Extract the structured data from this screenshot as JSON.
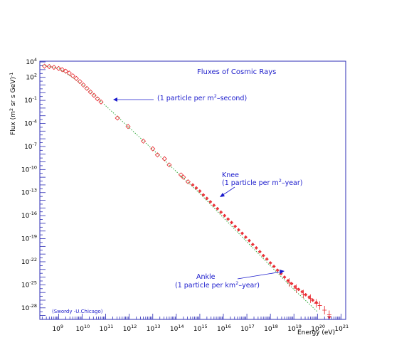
{
  "chart_data": {
    "type": "scatter",
    "title": "Fluxes of Cosmic Rays",
    "xlabel": "Energy (eV)",
    "ylabel_base": "Flux (m",
    "ylabel_parts": [
      "Flux (m",
      "2",
      " sr s GeV)",
      "-1"
    ],
    "x_scale": "log",
    "y_scale": "log",
    "xlim_exp": [
      8.2,
      21.2
    ],
    "ylim_exp": [
      -29.5,
      4.1
    ],
    "x_tick_exponents": [
      9,
      10,
      11,
      12,
      13,
      14,
      15,
      16,
      17,
      18,
      19,
      20,
      21
    ],
    "y_tick_exponents": [
      4,
      2,
      -1,
      -4,
      -7,
      -10,
      -13,
      -16,
      -19,
      -22,
      -25,
      -28
    ],
    "tick_base": "10",
    "grid": false,
    "colors": {
      "data": "#e8232a",
      "fit": "#2faa3a",
      "annotation": "#1a1acc",
      "frame": "#2b2bb5"
    },
    "credit": "(Swordy -U.Chicago)",
    "annotations": [
      {
        "text": "(1 particle per m²–second)",
        "lines": [
          "(1 particle per m",
          "2",
          "–second)"
        ],
        "x_exp": 11.3,
        "y_exp": -0.7
      },
      {
        "text": "Knee",
        "lines": [
          "Knee"
        ],
        "x_exp": 15.8,
        "y_exp": -12.8
      },
      {
        "text": "(1 particle per m²–year)",
        "lines": [
          "(1 particle per m",
          "2",
          "–year)"
        ],
        "x_exp": 15.8,
        "y_exp": -12.8
      },
      {
        "text": "Ankle",
        "lines": [
          "Ankle"
        ],
        "x_exp": 18.6,
        "y_exp": -24.7
      },
      {
        "text": "(1 particle per km²–year)",
        "lines": [
          "(1 particle per km",
          "2",
          "–year)"
        ],
        "x_exp": 18.6,
        "y_exp": -24.7
      }
    ],
    "fit_line": {
      "name": "",
      "points": [
        [
          8.3,
          3.55
        ],
        [
          9.0,
          3.2
        ],
        [
          10.0,
          1.1
        ],
        [
          11.0,
          -1.7
        ],
        [
          12.0,
          -4.55
        ],
        [
          13.0,
          -7.4
        ],
        [
          14.0,
          -10.25
        ],
        [
          15.0,
          -13.1
        ],
        [
          16.0,
          -16.25
        ],
        [
          17.0,
          -19.4
        ],
        [
          18.0,
          -22.55
        ],
        [
          19.0,
          -25.6
        ],
        [
          20.0,
          -28.5
        ]
      ]
    },
    "series": [
      {
        "name": "",
        "marker": "diamond-open",
        "points": [
          [
            8.4,
            3.45
          ],
          [
            8.6,
            3.4
          ],
          [
            8.8,
            3.3
          ],
          [
            9.0,
            3.15
          ],
          [
            9.15,
            3.0
          ],
          [
            9.3,
            2.8
          ],
          [
            9.45,
            2.55
          ],
          [
            9.6,
            2.2
          ],
          [
            9.75,
            1.85
          ],
          [
            9.9,
            1.45
          ],
          [
            10.05,
            1.0
          ],
          [
            10.2,
            0.55
          ],
          [
            10.35,
            0.1
          ],
          [
            10.5,
            -0.35
          ],
          [
            10.65,
            -0.8
          ],
          [
            10.8,
            -1.2
          ],
          [
            11.5,
            -3.3
          ],
          [
            11.95,
            -4.4
          ],
          [
            12.6,
            -6.3
          ],
          [
            13.0,
            -7.3
          ],
          [
            13.2,
            -8.1
          ],
          [
            13.5,
            -8.6
          ],
          [
            13.7,
            -9.4
          ],
          [
            14.2,
            -10.7
          ],
          [
            14.3,
            -11.0
          ],
          [
            14.5,
            -11.6
          ]
        ]
      },
      {
        "name": "",
        "marker": "cross-small",
        "points": [
          [
            14.7,
            -12.0
          ],
          [
            14.85,
            -12.4
          ],
          [
            15.0,
            -12.8
          ],
          [
            15.15,
            -13.3
          ],
          [
            15.3,
            -13.75
          ],
          [
            15.45,
            -14.2
          ],
          [
            15.6,
            -14.65
          ],
          [
            15.75,
            -15.1
          ],
          [
            15.9,
            -15.55
          ],
          [
            16.05,
            -16.0
          ],
          [
            16.2,
            -16.45
          ],
          [
            16.35,
            -16.9
          ],
          [
            16.5,
            -17.4
          ],
          [
            16.65,
            -17.85
          ],
          [
            16.8,
            -18.3
          ],
          [
            16.95,
            -18.8
          ],
          [
            17.1,
            -19.25
          ],
          [
            17.25,
            -19.75
          ],
          [
            17.4,
            -20.2
          ],
          [
            17.55,
            -20.7
          ],
          [
            17.7,
            -21.2
          ],
          [
            17.85,
            -21.65
          ],
          [
            18.0,
            -22.15
          ],
          [
            18.15,
            -22.6
          ],
          [
            18.3,
            -23.1
          ],
          [
            18.45,
            -23.55
          ],
          [
            18.6,
            -24.0
          ],
          [
            18.75,
            -24.45
          ],
          [
            18.9,
            -24.85
          ],
          [
            19.05,
            -25.25
          ],
          [
            19.2,
            -25.6
          ],
          [
            19.35,
            -25.9
          ],
          [
            19.5,
            -26.3
          ],
          [
            19.65,
            -26.6
          ],
          [
            19.8,
            -27.0
          ],
          [
            19.95,
            -27.3
          ]
        ]
      },
      {
        "name": "",
        "marker": "error-bar",
        "points": [
          [
            18.8,
            -24.7
          ],
          [
            19.1,
            -25.5
          ],
          [
            19.4,
            -26.2
          ],
          [
            19.7,
            -26.8
          ],
          [
            19.95,
            -27.4
          ],
          [
            20.1,
            -27.7
          ],
          [
            20.3,
            -28.3
          ],
          [
            20.5,
            -28.9
          ]
        ]
      }
    ]
  }
}
